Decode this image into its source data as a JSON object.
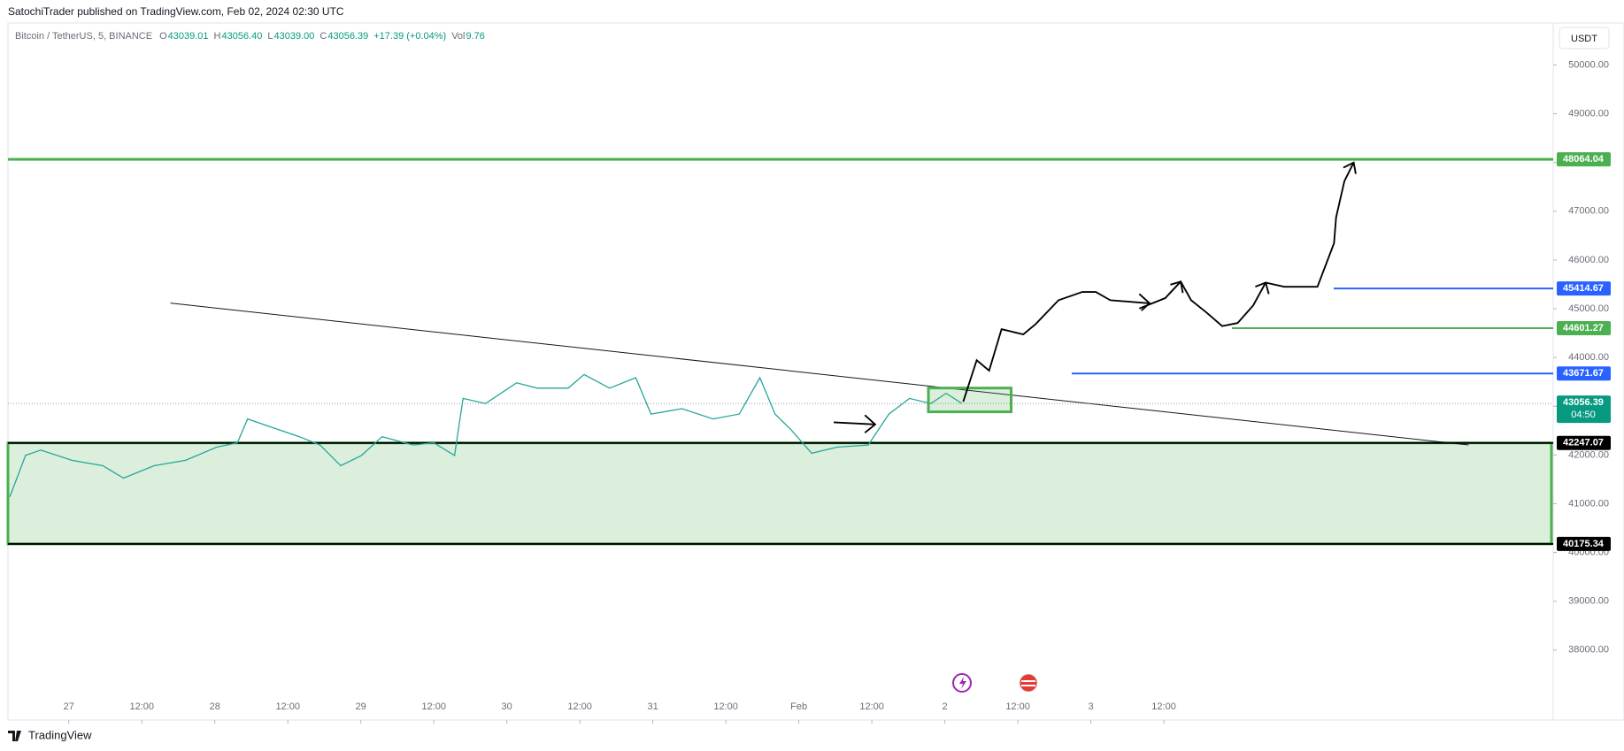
{
  "header": {
    "text": "SatochiTrader published on TradingView.com, Feb 02, 2024 02:30 UTC"
  },
  "footer": {
    "brand": "TradingView"
  },
  "currency_button": "USDT",
  "legend": {
    "symbol": "Bitcoin / TetherUS, 5, BINANCE",
    "items": [
      {
        "key": "O",
        "text": "43039.01"
      },
      {
        "key": "H",
        "text": "43056.40"
      },
      {
        "key": "L",
        "text": "43039.00"
      },
      {
        "key": "C",
        "text": "43056.39"
      }
    ],
    "change": "+17.39 (+0.04%)",
    "volume_key": "Vol",
    "volume": "9.76"
  },
  "chart_data": {
    "type": "line",
    "x": [
      -9.7,
      -7.1,
      -4.6,
      0.5,
      5.6,
      9,
      14,
      19.2,
      24.3,
      27.7,
      29.4,
      32.8,
      37.9,
      41.3,
      44.7,
      48.1,
      51.5,
      56.6,
      60,
      63.4,
      64.8,
      68.5,
      73.6,
      77,
      82.1,
      84.7,
      88.9,
      93.2,
      95.7,
      100.8,
      105.9,
      110.2,
      113.6,
      116.1,
      118.7,
      122.1,
      126.3,
      131.4,
      134.8,
      138.2,
      141.7,
      144.2,
      146.8
    ],
    "series": [
      {
        "name": "BTCUSDT",
        "color": "#26a69a",
        "values": [
          41143,
          41992,
          42100,
          41890,
          41780,
          41525,
          41780,
          41890,
          42160,
          42250,
          42740,
          42590,
          42375,
          42205,
          41780,
          41990,
          42375,
          42205,
          42250,
          41990,
          43160,
          43055,
          43480,
          43370,
          43370,
          43650,
          43370,
          43585,
          42840,
          42950,
          42740,
          42840,
          43585,
          42840,
          42520,
          42035,
          42160,
          42205,
          42840,
          43160,
          43055,
          43265,
          43056.39
        ]
      }
    ],
    "xlim": [
      -10,
      244
    ],
    "xticks": [
      {
        "value": 0,
        "label": "27"
      },
      {
        "value": 12,
        "label": "12:00"
      },
      {
        "value": 24,
        "label": "28"
      },
      {
        "value": 36,
        "label": "12:00"
      },
      {
        "value": 48,
        "label": "29"
      },
      {
        "value": 60,
        "label": "12:00"
      },
      {
        "value": 72,
        "label": "30"
      },
      {
        "value": 84,
        "label": "12:00"
      },
      {
        "value": 96,
        "label": "31"
      },
      {
        "value": 108,
        "label": "12:00"
      },
      {
        "value": 120,
        "label": "Feb"
      },
      {
        "value": 132,
        "label": "12:00"
      },
      {
        "value": 144,
        "label": "2"
      },
      {
        "value": 156,
        "label": "12:00"
      },
      {
        "value": 168,
        "label": "3"
      },
      {
        "value": 180,
        "label": "12:00"
      }
    ],
    "ylim": [
      37107,
      50807
    ],
    "yticks": [
      {
        "value": 38000,
        "label": "38000.00"
      },
      {
        "value": 39000,
        "label": "39000.00"
      },
      {
        "value": 40000,
        "label": "40000.00"
      },
      {
        "value": 41000,
        "label": "41000.00"
      },
      {
        "value": 42000,
        "label": "42000.00"
      },
      {
        "value": 43000,
        "label": "43000.00"
      },
      {
        "value": 44000,
        "label": "44000.00"
      },
      {
        "value": 45000,
        "label": "45000.00"
      },
      {
        "value": 46000,
        "label": "46000.00"
      },
      {
        "value": 47000,
        "label": "47000.00"
      },
      {
        "value": 48000,
        "label": "48000.00"
      },
      {
        "value": 49000,
        "label": "49000.00"
      },
      {
        "value": 50000,
        "label": "50000.00"
      }
    ],
    "zone": {
      "top": 42247.07,
      "bottom": 40175.34,
      "color": "#4caf50"
    },
    "levels": [
      {
        "value": 48064.04,
        "color": "#4caf50"
      },
      {
        "value": 45414.67,
        "color": "#2962ff"
      },
      {
        "value": 44601.27,
        "color": "#4caf50"
      },
      {
        "value": 43671.67,
        "color": "#2962ff"
      },
      {
        "value": 42247.07,
        "color": "#000000"
      },
      {
        "value": 40175.34,
        "color": "#000000"
      }
    ],
    "trendline": {
      "x": [
        16.7,
        230.1
      ],
      "values": [
        45115,
        42205
      ]
    },
    "box": {
      "x": [
        141.3,
        154.9
      ],
      "values": [
        43373,
        42885
      ],
      "color": "#4caf50"
    },
    "price": {
      "value": 43056.39,
      "countdown": "04:50",
      "color": "#089981"
    }
  }
}
